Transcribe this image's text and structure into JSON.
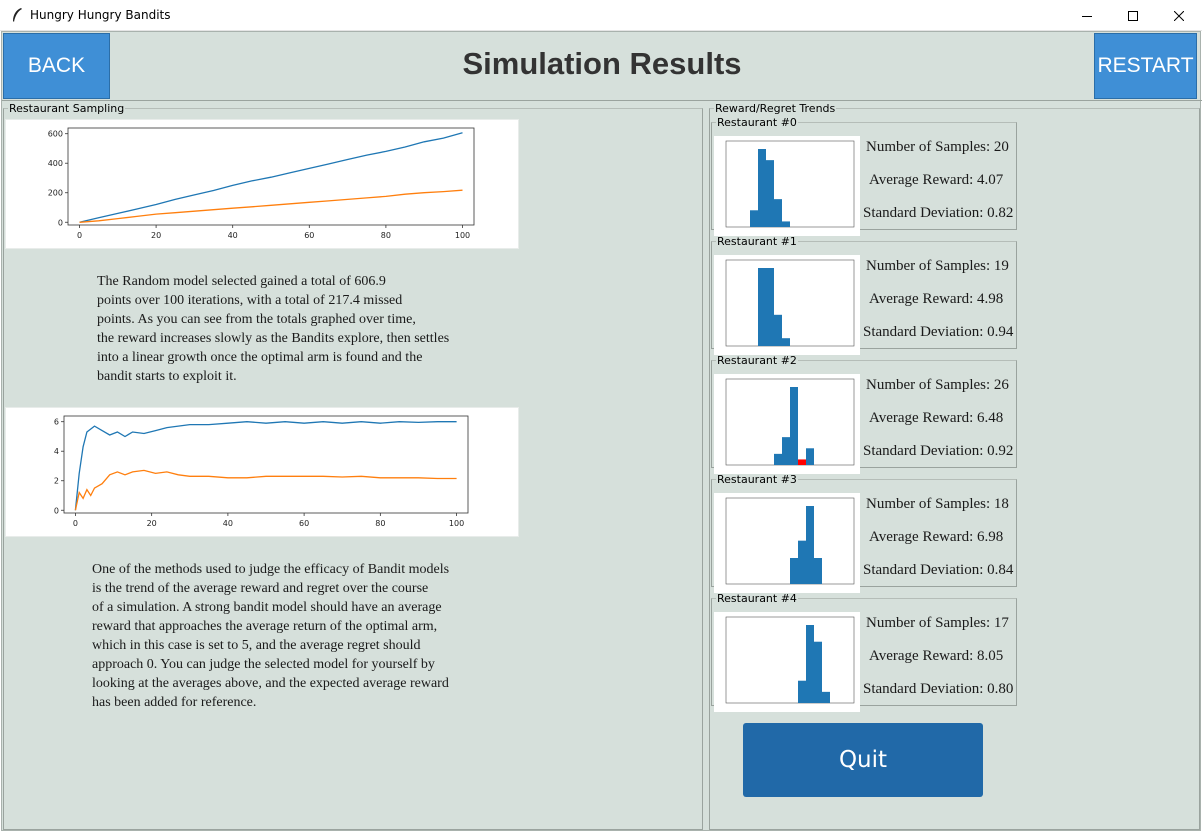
{
  "window": {
    "title": "Hungry Hungry Bandits"
  },
  "header": {
    "back_label": "BACK",
    "title": "Simulation Results",
    "restart_label": "RESTART"
  },
  "colors": {
    "background": "#d6e0db",
    "button": "#3f8fd6",
    "quit_button": "#2169a8",
    "series_blue": "#1f77b4",
    "series_orange": "#ff7f0e",
    "highlight": "#ff0000"
  },
  "left_panel": {
    "legend": "Restaurant Sampling",
    "totals_text": "The Random model selected gained a total of 606.9\npoints over 100 iterations, with a total of 217.4 missed\npoints. As you can see from the totals graphed over time,\nthe reward increases slowly as the Bandits explore, then settles\ninto a linear growth once the optimal arm is found and the\nbandit starts to exploit it.",
    "averages_text": "One of the methods used to judge the efficacy of Bandit models\nis the trend of the average reward and regret over the course\nof a simulation. A strong bandit model should have an average\nreward that approaches the average return of the optimal arm,\nwhich in this case is set to 5, and the average regret should\napproach 0. You can judge the selected model for yourself by\nlooking at the averages above, and the expected average reward\nhas been added for reference."
  },
  "chart_data": [
    {
      "type": "line",
      "xlim": [
        0,
        100
      ],
      "ylim": [
        0,
        620
      ],
      "xticks": [
        "0",
        "20",
        "40",
        "60",
        "80",
        "100"
      ],
      "yticks": [
        "0",
        "200",
        "400",
        "600"
      ],
      "series": [
        {
          "color": "#1f77b4",
          "x": [
            0,
            5,
            10,
            15,
            20,
            25,
            30,
            35,
            40,
            45,
            50,
            55,
            60,
            65,
            70,
            75,
            80,
            85,
            90,
            95,
            100
          ],
          "values": [
            0,
            30,
            60,
            90,
            120,
            155,
            185,
            215,
            250,
            280,
            305,
            335,
            365,
            395,
            425,
            455,
            480,
            510,
            545,
            570,
            607
          ]
        },
        {
          "color": "#ff7f0e",
          "x": [
            0,
            5,
            10,
            15,
            20,
            25,
            30,
            35,
            40,
            45,
            50,
            55,
            60,
            65,
            70,
            75,
            80,
            85,
            90,
            95,
            100
          ],
          "values": [
            0,
            10,
            25,
            40,
            55,
            65,
            75,
            85,
            95,
            105,
            115,
            125,
            135,
            145,
            155,
            165,
            175,
            190,
            200,
            208,
            217
          ]
        }
      ]
    },
    {
      "type": "line",
      "xlim": [
        0,
        100
      ],
      "ylim": [
        0,
        6.2
      ],
      "xticks": [
        "0",
        "20",
        "40",
        "60",
        "80",
        "100"
      ],
      "yticks": [
        "0",
        "2",
        "4",
        "6"
      ],
      "series": [
        {
          "color": "#1f77b4",
          "x": [
            0,
            1,
            2,
            3,
            5,
            7,
            9,
            11,
            13,
            15,
            18,
            21,
            24,
            27,
            30,
            35,
            40,
            45,
            50,
            55,
            60,
            65,
            70,
            75,
            80,
            85,
            90,
            95,
            100
          ],
          "values": [
            0,
            2.5,
            4.3,
            5.3,
            5.7,
            5.4,
            5.1,
            5.3,
            5.0,
            5.3,
            5.2,
            5.4,
            5.6,
            5.7,
            5.8,
            5.8,
            5.9,
            6.0,
            5.9,
            6.0,
            5.9,
            6.0,
            5.9,
            6.0,
            5.9,
            6.0,
            5.95,
            6.0,
            6.0
          ]
        },
        {
          "color": "#ff7f0e",
          "x": [
            0,
            1,
            2,
            3,
            4,
            5,
            7,
            9,
            11,
            13,
            15,
            18,
            21,
            24,
            27,
            30,
            35,
            40,
            45,
            50,
            55,
            60,
            65,
            70,
            75,
            80,
            85,
            90,
            95,
            100
          ],
          "values": [
            0,
            1.2,
            0.8,
            1.4,
            1.0,
            1.5,
            1.8,
            2.4,
            2.6,
            2.4,
            2.6,
            2.7,
            2.5,
            2.6,
            2.4,
            2.3,
            2.3,
            2.2,
            2.2,
            2.3,
            2.3,
            2.3,
            2.3,
            2.25,
            2.3,
            2.2,
            2.2,
            2.2,
            2.15,
            2.15
          ]
        }
      ]
    }
  ],
  "right_panel": {
    "legend": "Reward/Regret Trends",
    "restaurants": [
      {
        "label": "Restaurant #0",
        "samples": "Number of Samples: 20",
        "avg": "Average Reward: 4.07",
        "std": "Standard Deviation: 0.82",
        "hist": {
          "type": "bar",
          "bins": [
            {
              "x": 2.5,
              "h": 3
            },
            {
              "x": 3.0,
              "h": 14
            },
            {
              "x": 3.5,
              "h": 12
            },
            {
              "x": 4.0,
              "h": 5
            },
            {
              "x": 4.5,
              "h": 1
            }
          ],
          "highlight": []
        }
      },
      {
        "label": "Restaurant #1",
        "samples": "Number of Samples: 19",
        "avg": "Average Reward: 4.98",
        "std": "Standard Deviation: 0.94",
        "hist": {
          "type": "bar",
          "bins": [
            {
              "x": 3.0,
              "h": 10
            },
            {
              "x": 3.5,
              "h": 10
            },
            {
              "x": 4.0,
              "h": 4
            },
            {
              "x": 4.5,
              "h": 1
            }
          ],
          "highlight": []
        }
      },
      {
        "label": "Restaurant #2",
        "samples": "Number of Samples: 26",
        "avg": "Average Reward: 6.48",
        "std": "Standard Deviation: 0.92",
        "hist": {
          "type": "bar",
          "bins": [
            {
              "x": 4.0,
              "h": 2
            },
            {
              "x": 4.5,
              "h": 5
            },
            {
              "x": 5.0,
              "h": 14
            },
            {
              "x": 5.5,
              "h": 1
            },
            {
              "x": 6.0,
              "h": 3
            }
          ],
          "highlight": [
            3
          ]
        }
      },
      {
        "label": "Restaurant #3",
        "samples": "Number of Samples: 18",
        "avg": "Average Reward: 6.98",
        "std": "Standard Deviation: 0.84",
        "hist": {
          "type": "bar",
          "bins": [
            {
              "x": 5.0,
              "h": 6
            },
            {
              "x": 5.5,
              "h": 10
            },
            {
              "x": 6.0,
              "h": 18
            },
            {
              "x": 6.5,
              "h": 6
            }
          ],
          "highlight": []
        }
      },
      {
        "label": "Restaurant #4",
        "samples": "Number of Samples: 17",
        "avg": "Average Reward: 8.05",
        "std": "Standard Deviation: 0.80",
        "hist": {
          "type": "bar",
          "bins": [
            {
              "x": 5.5,
              "h": 4
            },
            {
              "x": 6.0,
              "h": 14
            },
            {
              "x": 6.5,
              "h": 11
            },
            {
              "x": 7.0,
              "h": 2
            }
          ],
          "highlight": []
        }
      }
    ],
    "quit_label": "Quit"
  }
}
